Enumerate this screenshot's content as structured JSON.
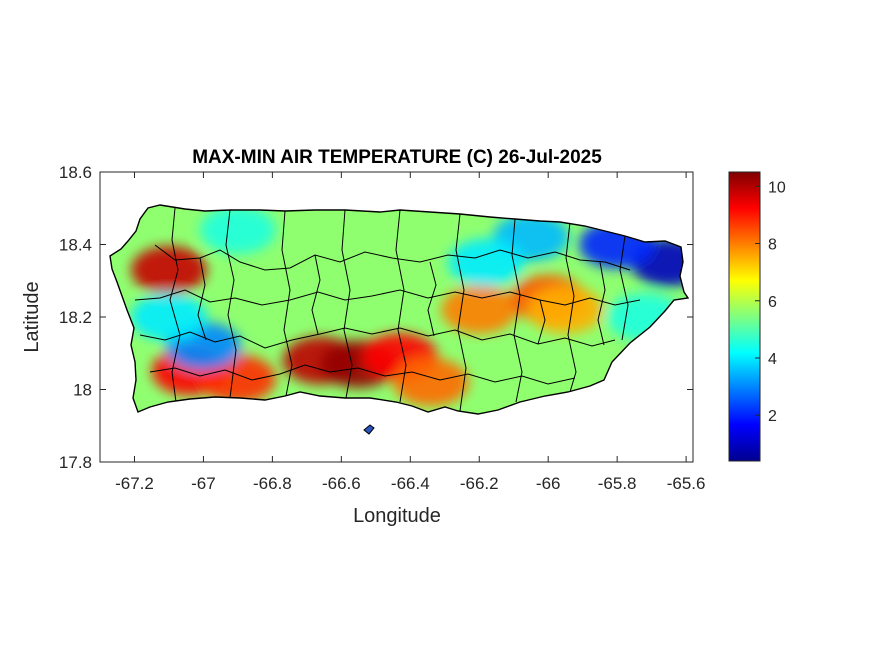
{
  "chart_data": {
    "type": "heatmap",
    "title": "MAX-MIN AIR TEMPERATURE (C) 26-Jul-2025",
    "xlabel": "Longitude",
    "ylabel": "Latitude",
    "xlim": [
      -67.3,
      -65.58
    ],
    "ylim": [
      17.8,
      18.6
    ],
    "xticks": [
      -67.2,
      -67,
      -66.8,
      -66.6,
      -66.4,
      -66.2,
      -66,
      -65.8,
      -65.6
    ],
    "xtick_labels": [
      "-67.2",
      "-67",
      "-66.8",
      "-66.6",
      "-66.4",
      "-66.2",
      "-66",
      "-65.8",
      "-65.6"
    ],
    "yticks": [
      17.8,
      18,
      18.2,
      18.4,
      18.6
    ],
    "ytick_labels": [
      "17.8",
      "18",
      "18.2",
      "18.4",
      "18.6"
    ],
    "colorbar": {
      "colormap": "jet",
      "clim": [
        0.4,
        10.5
      ],
      "ticks": [
        2,
        4,
        6,
        8,
        10
      ],
      "tick_labels": [
        "2",
        "4",
        "6",
        "8",
        "10"
      ]
    },
    "grid": false,
    "hotspots": [
      {
        "lon": -67.1,
        "lat": 18.33,
        "value": 9.8
      },
      {
        "lon": -67.04,
        "lat": 18.05,
        "value": 9.2
      },
      {
        "lon": -66.9,
        "lat": 18.03,
        "value": 8.8
      },
      {
        "lon": -66.66,
        "lat": 18.08,
        "value": 9.9
      },
      {
        "lon": -66.55,
        "lat": 18.07,
        "value": 10.3
      },
      {
        "lon": -66.43,
        "lat": 18.09,
        "value": 9.2
      },
      {
        "lon": -66.34,
        "lat": 18.02,
        "value": 8.2
      },
      {
        "lon": -66.2,
        "lat": 18.22,
        "value": 8.0
      },
      {
        "lon": -66.0,
        "lat": 18.25,
        "value": 8.4
      },
      {
        "lon": -65.95,
        "lat": 18.22,
        "value": 7.5
      }
    ],
    "coldspots": [
      {
        "lon": -65.65,
        "lat": 18.35,
        "value": 1.0
      },
      {
        "lon": -65.8,
        "lat": 18.4,
        "value": 2.0
      },
      {
        "lon": -66.05,
        "lat": 18.42,
        "value": 3.5
      },
      {
        "lon": -66.18,
        "lat": 18.35,
        "value": 4.0
      },
      {
        "lon": -67.0,
        "lat": 18.12,
        "value": 3.0
      },
      {
        "lon": -67.1,
        "lat": 18.2,
        "value": 4.0
      },
      {
        "lon": -66.9,
        "lat": 18.44,
        "value": 4.5
      },
      {
        "lon": -65.72,
        "lat": 18.2,
        "value": 4.5
      }
    ],
    "background_value": 5.6
  }
}
